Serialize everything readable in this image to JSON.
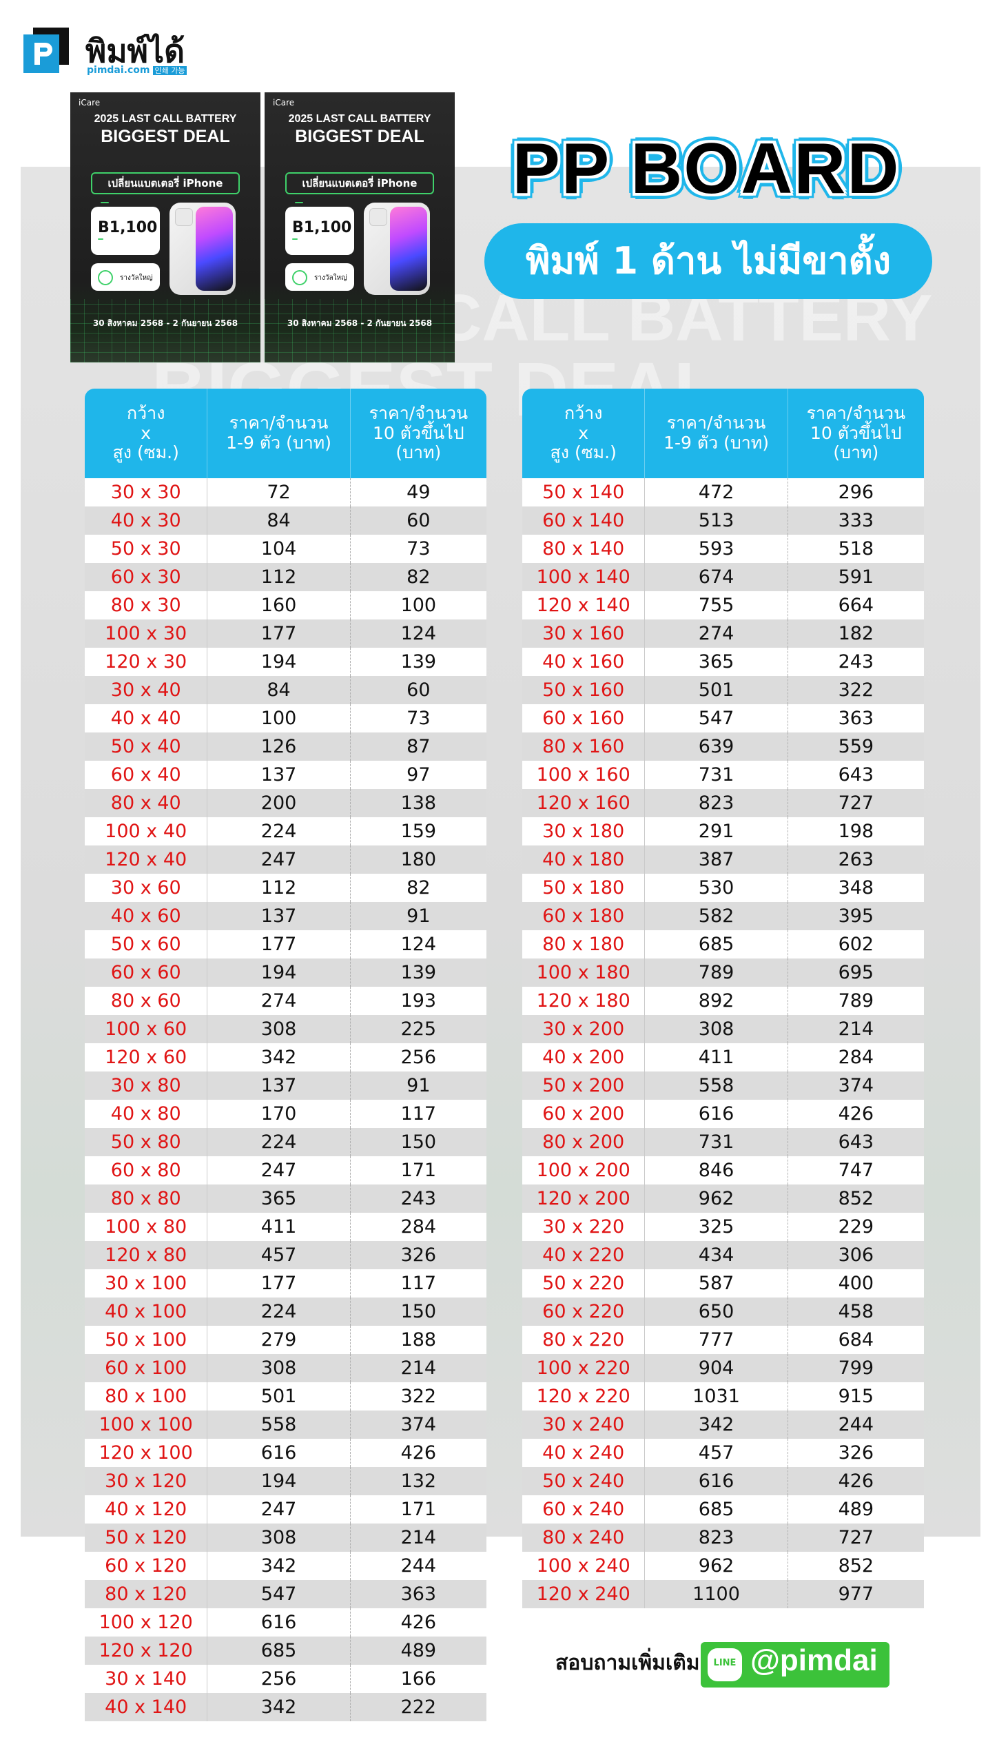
{
  "logo": {
    "name": "พิมพ์ได้",
    "site": "pimdai.com",
    "tag": "인쇄 가능"
  },
  "posters": [
    {
      "brand": "iCare",
      "line1": "2025 LAST CALL BATTERY",
      "line2": "BIGGEST DEAL",
      "pill": "เปลี่ยนแบตเตอรี่ iPhone",
      "price": "B1,100",
      "option": "รางวัลใหญ่",
      "dates": "30 สิงหาคม 2568 - 2 กันยายน 2568"
    },
    {
      "brand": "iCare",
      "line1": "2025 LAST CALL BATTERY",
      "line2": "BIGGEST DEAL",
      "pill": "เปลี่ยนแบตเตอรี่ iPhone",
      "price": "B1,100",
      "option": "รางวัลใหญ่",
      "dates": "30 สิงหาคม 2568 - 2 กันยายน 2568"
    }
  ],
  "title": "PP BOARD",
  "subtitle": "พิมพ์ 1 ด้าน ไม่มีขาตั้ง",
  "headers": {
    "size": [
      "กว้าง",
      "x",
      "สูง (ซม.)"
    ],
    "price_small": [
      "ราคา/จำนวน",
      "1-9 ตัว (บาท)"
    ],
    "price_bulk": [
      "ราคา/จำนวน",
      "10 ตัวขึ้นไป",
      "(บาท)"
    ]
  },
  "table_left": [
    [
      "30 x 30",
      "72",
      "49"
    ],
    [
      "40 x 30",
      "84",
      "60"
    ],
    [
      "50 x 30",
      "104",
      "73"
    ],
    [
      "60 x 30",
      "112",
      "82"
    ],
    [
      "80 x 30",
      "160",
      "100"
    ],
    [
      "100 x 30",
      "177",
      "124"
    ],
    [
      "120 x 30",
      "194",
      "139"
    ],
    [
      "30 x 40",
      "84",
      "60"
    ],
    [
      "40 x 40",
      "100",
      "73"
    ],
    [
      "50 x 40",
      "126",
      "87"
    ],
    [
      "60 x 40",
      "137",
      "97"
    ],
    [
      "80 x 40",
      "200",
      "138"
    ],
    [
      "100 x 40",
      "224",
      "159"
    ],
    [
      "120 x 40",
      "247",
      "180"
    ],
    [
      "30 x 60",
      "112",
      "82"
    ],
    [
      "40 x 60",
      "137",
      "91"
    ],
    [
      "50 x 60",
      "177",
      "124"
    ],
    [
      "60 x 60",
      "194",
      "139"
    ],
    [
      "80 x 60",
      "274",
      "193"
    ],
    [
      "100 x 60",
      "308",
      "225"
    ],
    [
      "120 x 60",
      "342",
      "256"
    ],
    [
      "30 x 80",
      "137",
      "91"
    ],
    [
      "40 x 80",
      "170",
      "117"
    ],
    [
      "50 x 80",
      "224",
      "150"
    ],
    [
      "60 x 80",
      "247",
      "171"
    ],
    [
      "80 x 80",
      "365",
      "243"
    ],
    [
      "100 x 80",
      "411",
      "284"
    ],
    [
      "120 x 80",
      "457",
      "326"
    ],
    [
      "30 x 100",
      "177",
      "117"
    ],
    [
      "40 x 100",
      "224",
      "150"
    ],
    [
      "50 x 100",
      "279",
      "188"
    ],
    [
      "60 x 100",
      "308",
      "214"
    ],
    [
      "80 x 100",
      "501",
      "322"
    ],
    [
      "100 x 100",
      "558",
      "374"
    ],
    [
      "120 x 100",
      "616",
      "426"
    ],
    [
      "30 x 120",
      "194",
      "132"
    ],
    [
      "40 x 120",
      "247",
      "171"
    ],
    [
      "50 x 120",
      "308",
      "214"
    ],
    [
      "60 x 120",
      "342",
      "244"
    ],
    [
      "80 x 120",
      "547",
      "363"
    ],
    [
      "100 x 120",
      "616",
      "426"
    ],
    [
      "120 x 120",
      "685",
      "489"
    ],
    [
      "30 x 140",
      "256",
      "166"
    ],
    [
      "40 x 140",
      "342",
      "222"
    ]
  ],
  "table_right": [
    [
      "50 x 140",
      "472",
      "296"
    ],
    [
      "60 x 140",
      "513",
      "333"
    ],
    [
      "80 x 140",
      "593",
      "518"
    ],
    [
      "100 x 140",
      "674",
      "591"
    ],
    [
      "120 x 140",
      "755",
      "664"
    ],
    [
      "30 x 160",
      "274",
      "182"
    ],
    [
      "40 x 160",
      "365",
      "243"
    ],
    [
      "50 x 160",
      "501",
      "322"
    ],
    [
      "60 x 160",
      "547",
      "363"
    ],
    [
      "80 x 160",
      "639",
      "559"
    ],
    [
      "100 x 160",
      "731",
      "643"
    ],
    [
      "120 x 160",
      "823",
      "727"
    ],
    [
      "30 x 180",
      "291",
      "198"
    ],
    [
      "40 x 180",
      "387",
      "263"
    ],
    [
      "50 x 180",
      "530",
      "348"
    ],
    [
      "60 x 180",
      "582",
      "395"
    ],
    [
      "80 x 180",
      "685",
      "602"
    ],
    [
      "100 x 180",
      "789",
      "695"
    ],
    [
      "120 x 180",
      "892",
      "789"
    ],
    [
      "30 x 200",
      "308",
      "214"
    ],
    [
      "40 x 200",
      "411",
      "284"
    ],
    [
      "50 x 200",
      "558",
      "374"
    ],
    [
      "60 x 200",
      "616",
      "426"
    ],
    [
      "80 x 200",
      "731",
      "643"
    ],
    [
      "100 x 200",
      "846",
      "747"
    ],
    [
      "120 x 200",
      "962",
      "852"
    ],
    [
      "30 x 220",
      "325",
      "229"
    ],
    [
      "40 x 220",
      "434",
      "306"
    ],
    [
      "50 x 220",
      "587",
      "400"
    ],
    [
      "60 x 220",
      "650",
      "458"
    ],
    [
      "80 x 220",
      "777",
      "684"
    ],
    [
      "100 x 220",
      "904",
      "799"
    ],
    [
      "120 x 220",
      "1031",
      "915"
    ],
    [
      "30 x 240",
      "342",
      "244"
    ],
    [
      "40 x 240",
      "457",
      "326"
    ],
    [
      "50 x 240",
      "616",
      "426"
    ],
    [
      "60 x 240",
      "685",
      "489"
    ],
    [
      "80 x 240",
      "823",
      "727"
    ],
    [
      "100 x 240",
      "962",
      "852"
    ],
    [
      "120 x 240",
      "1100",
      "977"
    ]
  ],
  "contact": {
    "label": "สอบถามเพิ่มเติม",
    "line_icon": "LINE",
    "handle": "@pimdai"
  },
  "colors": {
    "accent": "#1fb6ea",
    "size_text": "#e01414",
    "line_green": "#3cc23a"
  }
}
